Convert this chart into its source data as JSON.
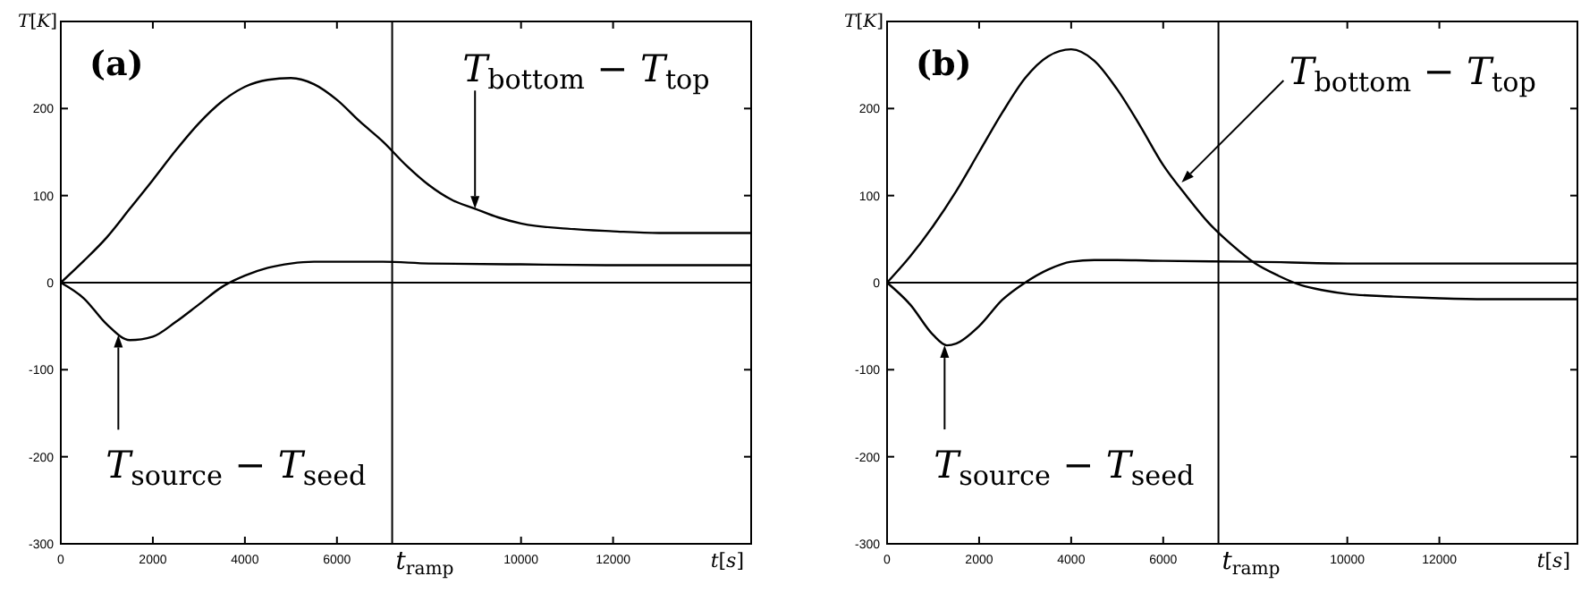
{
  "chart_data": [
    {
      "type": "line",
      "title": "(a)",
      "xlabel": "t[s]",
      "ylabel": "T[K]",
      "xlim": [
        0,
        15000
      ],
      "xticks": [
        0,
        2000,
        4000,
        6000,
        10000,
        12000
      ],
      "ylim": [
        -300,
        300
      ],
      "yticks": [
        -300,
        -200,
        -100,
        0,
        100,
        200
      ],
      "grid": false,
      "line_style": "solid",
      "marker": "none",
      "ref_lines": [
        {
          "axis": "x",
          "value": 7200,
          "label": "t$_{ramp}$",
          "color": "#000000"
        },
        {
          "axis": "y",
          "value": 0,
          "color": "#000000"
        }
      ],
      "annotations": [
        {
          "text": "T$_{bottom}$ − T$_{top}$",
          "x": 9000,
          "y": 85
        },
        {
          "text": "T$_{source}$ − T$_{seed}$",
          "x": 1250,
          "y": -60
        }
      ],
      "series": [
        {
          "color": "#000000",
          "x": [
            0,
            500,
            1000,
            1500,
            2000,
            2500,
            3000,
            3500,
            4000,
            4500,
            5000,
            5500,
            6000,
            6500,
            7000,
            7500,
            8000,
            8500,
            9000,
            9500,
            10000,
            11000,
            12000,
            13000,
            14000,
            15000
          ],
          "values": [
            0,
            25,
            52,
            85,
            118,
            152,
            183,
            208,
            225,
            233,
            235,
            228,
            210,
            185,
            162,
            135,
            112,
            95,
            85,
            75,
            68,
            62,
            59,
            57,
            57,
            57
          ]
        },
        {
          "color": "#000000",
          "x": [
            0,
            500,
            1000,
            1500,
            2000,
            2500,
            3000,
            3500,
            4000,
            4500,
            5000,
            5500,
            6000,
            7000,
            8000,
            10000,
            12000,
            15000
          ],
          "values": [
            0,
            -18,
            -48,
            -66,
            -62,
            -45,
            -25,
            -5,
            8,
            17,
            22,
            24,
            24,
            24,
            22,
            21,
            20,
            20
          ]
        }
      ]
    },
    {
      "type": "line",
      "title": "(b)",
      "xlabel": "t[s]",
      "ylabel": "T[K]",
      "xlim": [
        0,
        15000
      ],
      "xticks": [
        0,
        2000,
        4000,
        6000,
        10000,
        12000
      ],
      "ylim": [
        -300,
        300
      ],
      "yticks": [
        -300,
        -200,
        -100,
        0,
        100,
        200
      ],
      "grid": false,
      "line_style": "solid",
      "marker": "none",
      "ref_lines": [
        {
          "axis": "x",
          "value": 7200,
          "label": "t$_{ramp}$",
          "color": "#000000"
        },
        {
          "axis": "y",
          "value": 0,
          "color": "#000000"
        }
      ],
      "annotations": [
        {
          "text": "T$_{bottom}$ − T$_{top}$",
          "x": 6400,
          "y": 115
        },
        {
          "text": "T$_{source}$ − T$_{seed}$",
          "x": 1250,
          "y": -72
        }
      ],
      "series": [
        {
          "color": "#000000",
          "x": [
            0,
            500,
            1000,
            1500,
            2000,
            2500,
            3000,
            3500,
            4000,
            4500,
            5000,
            5500,
            6000,
            6500,
            7000,
            7500,
            8000,
            8500,
            9000,
            9500,
            10000,
            11000,
            12000,
            13000,
            15000
          ],
          "values": [
            0,
            30,
            65,
            105,
            150,
            195,
            235,
            260,
            268,
            255,
            222,
            180,
            135,
            100,
            68,
            43,
            22,
            8,
            -3,
            -9,
            -13,
            -16,
            -18,
            -19,
            -19
          ]
        },
        {
          "color": "#000000",
          "x": [
            0,
            500,
            1000,
            1300,
            1500,
            2000,
            2500,
            3000,
            3500,
            4000,
            4500,
            5000,
            6000,
            8000,
            10000,
            15000
          ],
          "values": [
            0,
            -25,
            -60,
            -72,
            -70,
            -50,
            -20,
            0,
            15,
            24,
            26,
            26,
            25,
            24,
            22,
            22
          ]
        }
      ]
    }
  ]
}
